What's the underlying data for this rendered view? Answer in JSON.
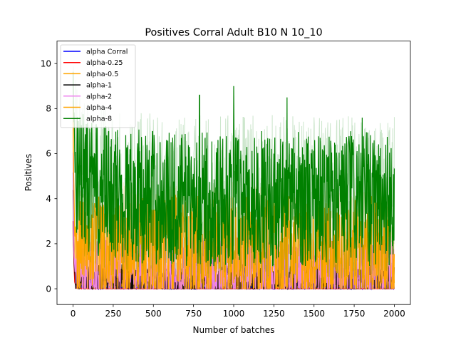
{
  "chart_data": {
    "type": "line",
    "title": "Positives Corral Adult B10 N 10_10",
    "xlabel": "Number of batches",
    "ylabel": "Positives",
    "xlim": [
      -100,
      2100
    ],
    "ylim": [
      -0.7,
      11.0
    ],
    "xticks": [
      0,
      250,
      500,
      750,
      1000,
      1250,
      1500,
      1750,
      2000
    ],
    "yticks": [
      0,
      2,
      4,
      6,
      8,
      10
    ],
    "grid": false,
    "legend_position": "top-left",
    "series": [
      {
        "name": "alpha Corral",
        "color": "#0000ff",
        "x": [
          0,
          5,
          10,
          20,
          40,
          80,
          150,
          300,
          600,
          1000,
          1500,
          2000
        ],
        "values": [
          5.2,
          2.5,
          0.6,
          0.2,
          0.1,
          0.05,
          0.02,
          0.0,
          0.0,
          0.0,
          0.0,
          0.0
        ]
      },
      {
        "name": "alpha-0.25",
        "color": "#ff0000",
        "x": [
          0,
          5,
          10,
          20,
          40,
          80,
          150,
          300,
          600,
          1000,
          1500,
          2000
        ],
        "values": [
          3.0,
          1.2,
          0.3,
          0.05,
          0.02,
          0.0,
          0.0,
          0.0,
          0.0,
          0.0,
          0.0,
          0.0
        ]
      },
      {
        "name": "alpha-0.5",
        "color": "#ffa500",
        "x": [
          0,
          5,
          10,
          20,
          40,
          80,
          150,
          300,
          600,
          1000,
          1500,
          2000
        ],
        "values": [
          7.5,
          3.0,
          1.0,
          0.4,
          0.3,
          0.3,
          0.3,
          0.3,
          0.3,
          0.3,
          0.3,
          0.3
        ]
      },
      {
        "name": "alpha-1",
        "color": "#000000",
        "x": [
          0,
          5,
          10,
          20,
          40,
          80,
          150,
          300,
          600,
          1000,
          1500,
          2000
        ],
        "values": [
          4.5,
          1.5,
          0.6,
          0.5,
          0.4,
          0.4,
          0.4,
          0.4,
          0.4,
          0.4,
          0.4,
          0.4
        ]
      },
      {
        "name": "alpha-2",
        "color": "#ee82ee",
        "x": [
          0,
          5,
          10,
          20,
          40,
          80,
          150,
          300,
          600,
          1000,
          1500,
          2000
        ],
        "values": [
          6.0,
          2.0,
          1.2,
          0.9,
          0.9,
          0.9,
          0.9,
          0.9,
          0.9,
          0.9,
          0.9,
          0.9
        ]
      },
      {
        "name": "alpha-4",
        "color": "#ffa500",
        "x": [
          0,
          5,
          10,
          20,
          40,
          80,
          150,
          300,
          600,
          1000,
          1500,
          2000
        ],
        "values": [
          7.8,
          4.0,
          2.5,
          2.0,
          1.8,
          1.8,
          1.8,
          1.8,
          1.8,
          1.8,
          1.8,
          1.8
        ]
      },
      {
        "name": "alpha-8",
        "color": "#008000",
        "x": [
          0,
          5,
          10,
          20,
          40,
          80,
          150,
          300,
          600,
          1000,
          1500,
          2000
        ],
        "values": [
          10.0,
          7.5,
          6.0,
          5.5,
          5.0,
          4.6,
          4.3,
          4.2,
          4.0,
          4.0,
          4.0,
          4.0
        ]
      }
    ],
    "peak_annotations": [
      {
        "series": "alpha-8",
        "x": 787,
        "y": 8.6
      },
      {
        "series": "alpha-8",
        "x": 1000,
        "y": 9.0
      },
      {
        "series": "alpha-8",
        "x": 1332,
        "y": 8.5
      },
      {
        "series": "alpha-8",
        "x": 1800,
        "y": 7.6
      }
    ]
  }
}
